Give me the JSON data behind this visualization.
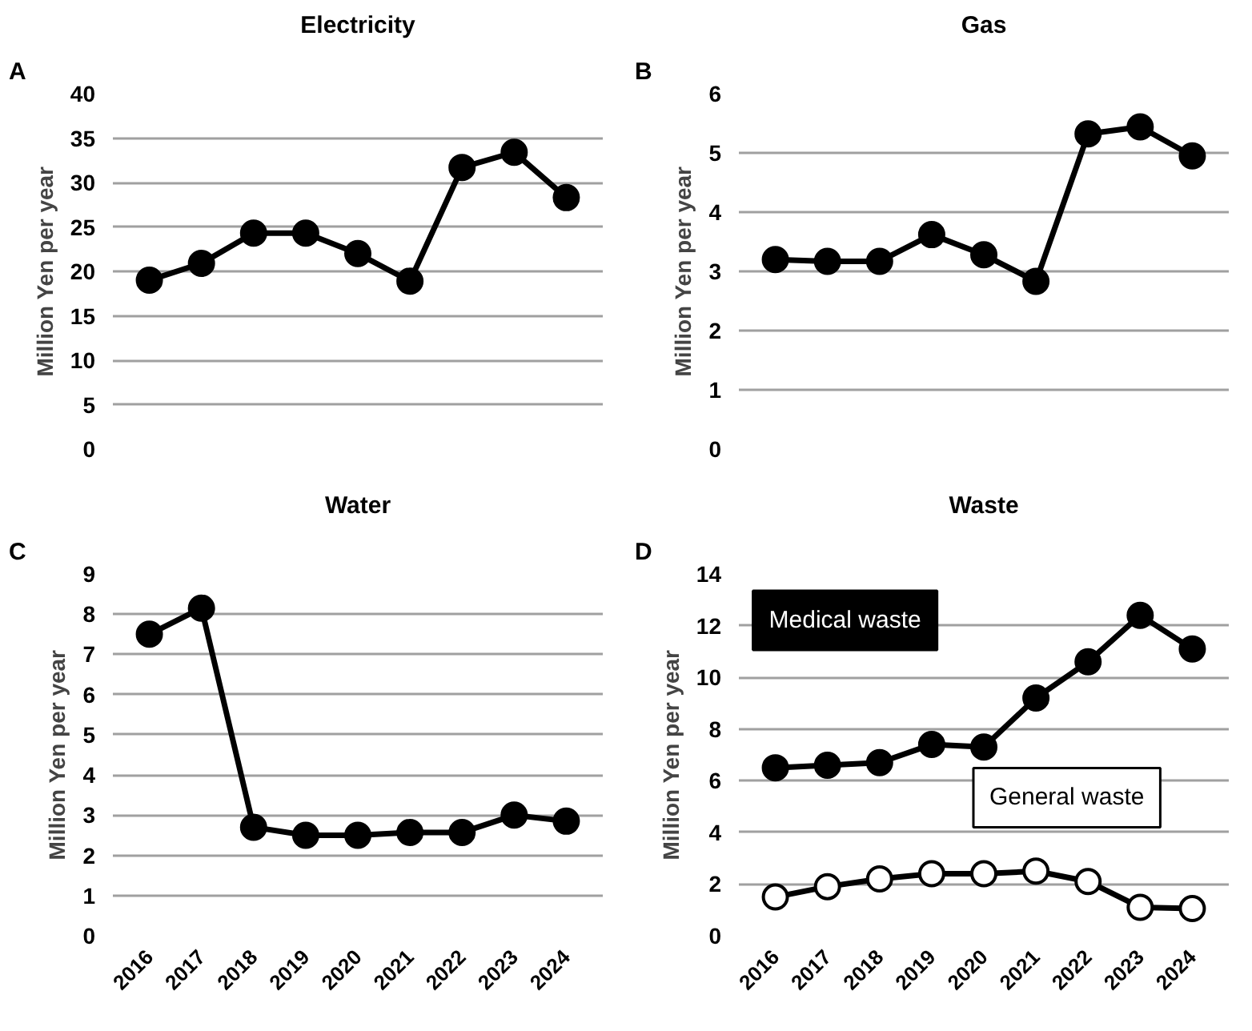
{
  "chart_data": [
    {
      "type": "line",
      "title": "Electricity",
      "annotations": [
        "A"
      ],
      "ylabel": "Million Yen per year",
      "categories": [
        "2016",
        "2017",
        "2018",
        "2019",
        "2020",
        "2021",
        "2022",
        "2023",
        "2024"
      ],
      "tick_labels": "y",
      "ylim": [
        0,
        40
      ],
      "yticks": [
        0,
        5,
        10,
        15,
        20,
        25,
        30,
        35,
        40
      ],
      "grid": "y",
      "marker": "circle",
      "line_style": "solid",
      "series": [
        {
          "color": "#000000",
          "values": [
            19.0,
            20.9,
            24.3,
            24.3,
            22.0,
            18.9,
            31.7,
            33.4,
            28.3
          ]
        }
      ]
    },
    {
      "type": "line",
      "title": "Gas",
      "annotations": [
        "B"
      ],
      "ylabel": "Million Yen per year",
      "categories": [
        "2016",
        "2017",
        "2018",
        "2019",
        "2020",
        "2021",
        "2022",
        "2023",
        "2024"
      ],
      "tick_labels": "y",
      "ylim": [
        0,
        6
      ],
      "yticks": [
        0,
        1,
        2,
        3,
        4,
        5,
        6
      ],
      "grid": "y",
      "marker": "circle",
      "line_style": "solid",
      "series": [
        {
          "color": "#000000",
          "values": [
            3.2,
            3.17,
            3.17,
            3.62,
            3.28,
            2.83,
            5.32,
            5.44,
            4.95
          ]
        }
      ]
    },
    {
      "type": "line",
      "title": "Water",
      "annotations": [
        "C"
      ],
      "ylabel": "Million Yen per year",
      "categories": [
        "2016",
        "2017",
        "2018",
        "2019",
        "2020",
        "2021",
        "2022",
        "2023",
        "2024"
      ],
      "ylim": [
        0,
        9
      ],
      "yticks": [
        0,
        1,
        2,
        3,
        4,
        5,
        6,
        7,
        8,
        9
      ],
      "grid": "y",
      "marker": "circle",
      "line_style": "solid",
      "series": [
        {
          "color": "#000000",
          "values": [
            7.5,
            8.15,
            2.7,
            2.5,
            2.5,
            2.57,
            2.57,
            3.0,
            2.85
          ]
        }
      ]
    },
    {
      "type": "line",
      "title": "Waste",
      "annotations": [
        "D"
      ],
      "ylabel": "Million Yen per year",
      "categories": [
        "2016",
        "2017",
        "2018",
        "2019",
        "2020",
        "2021",
        "2022",
        "2023",
        "2024"
      ],
      "ylim": [
        0,
        14
      ],
      "yticks": [
        0,
        2,
        4,
        6,
        8,
        10,
        12,
        14
      ],
      "grid": "y",
      "marker": "circle",
      "line_style": "solid",
      "series": [
        {
          "name": "Medical waste",
          "color": "#000000",
          "values": [
            6.5,
            6.6,
            6.7,
            7.4,
            7.3,
            9.2,
            10.6,
            12.4,
            11.1
          ]
        },
        {
          "name": "General waste",
          "color": "#ffffff",
          "values": [
            1.5,
            1.9,
            2.2,
            2.4,
            2.4,
            2.5,
            2.1,
            1.1,
            1.05
          ]
        }
      ]
    }
  ]
}
